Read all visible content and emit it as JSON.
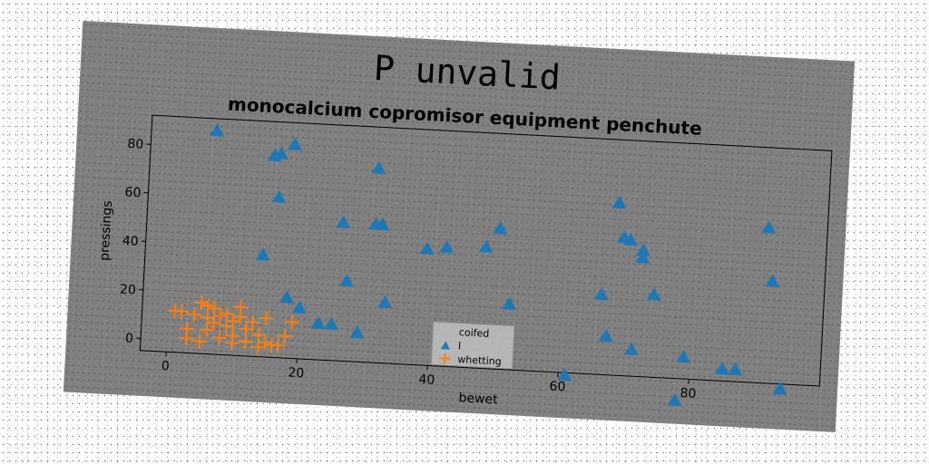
{
  "chart_data": {
    "type": "scatter",
    "title": "P unvalid",
    "subtitle": "monocalcium copromisor equipment penchute",
    "xlabel": "bewet",
    "ylabel": "pressings",
    "xlim": [
      -4,
      100
    ],
    "ylim": [
      -5,
      92
    ],
    "xticks": [
      0,
      20,
      40,
      60,
      80
    ],
    "yticks": [
      0,
      20,
      40,
      60,
      80
    ],
    "grid": false,
    "legend": {
      "placement": "lower-center",
      "title": "coifed",
      "entries": [
        "l",
        "whetting"
      ]
    },
    "series": [
      {
        "name": "l",
        "marker": "triangle",
        "color": "#1f77b4",
        "points": [
          [
            6,
            87
          ],
          [
            15,
            78
          ],
          [
            16,
            79
          ],
          [
            18,
            83
          ],
          [
            16,
            61
          ],
          [
            14,
            37
          ],
          [
            18,
            20
          ],
          [
            20,
            16
          ],
          [
            23,
            10
          ],
          [
            25,
            10
          ],
          [
            26,
            52
          ],
          [
            27,
            28
          ],
          [
            29,
            7
          ],
          [
            31,
            52
          ],
          [
            32,
            52
          ],
          [
            31,
            75
          ],
          [
            33,
            20
          ],
          [
            39,
            43
          ],
          [
            42,
            44
          ],
          [
            48,
            45
          ],
          [
            50,
            53
          ],
          [
            52,
            22
          ],
          [
            61,
            -6
          ],
          [
            66,
            28
          ],
          [
            67,
            11
          ],
          [
            68,
            66
          ],
          [
            69,
            52
          ],
          [
            70,
            51
          ],
          [
            71,
            6
          ],
          [
            72,
            47
          ],
          [
            72,
            44
          ],
          [
            74,
            29
          ],
          [
            78,
            -14
          ],
          [
            79,
            4
          ],
          [
            85,
            0
          ],
          [
            87,
            0
          ],
          [
            91,
            59
          ],
          [
            92,
            37
          ],
          [
            94,
            -7
          ]
        ]
      },
      {
        "name": "whetting",
        "marker": "plus",
        "color": "#ff7f0e",
        "points": [
          [
            1,
            12
          ],
          [
            2,
            12
          ],
          [
            3,
            5
          ],
          [
            3,
            1
          ],
          [
            4,
            11
          ],
          [
            5,
            16
          ],
          [
            6,
            15
          ],
          [
            6,
            10
          ],
          [
            6,
            5
          ],
          [
            7,
            14
          ],
          [
            7,
            8
          ],
          [
            8,
            11
          ],
          [
            9,
            12
          ],
          [
            9,
            7
          ],
          [
            10,
            9
          ],
          [
            10,
            3
          ],
          [
            10,
            0
          ],
          [
            11,
            15
          ],
          [
            11,
            11
          ],
          [
            12,
            6
          ],
          [
            12,
            1
          ],
          [
            13,
            9
          ],
          [
            14,
            4
          ],
          [
            15,
            11
          ],
          [
            15,
            1
          ],
          [
            16,
            0
          ],
          [
            17,
            0
          ],
          [
            18,
            4
          ],
          [
            19,
            10
          ],
          [
            5,
            0
          ],
          [
            8,
            2
          ],
          [
            14,
            -1
          ]
        ]
      }
    ]
  }
}
